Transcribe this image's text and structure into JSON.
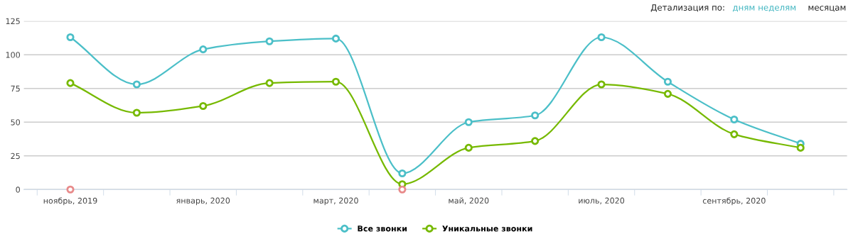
{
  "chart_data": {
    "type": "line",
    "categories": [
      "ноябрь, 2019",
      null,
      "январь, 2020",
      null,
      "март, 2020",
      null,
      "май, 2020",
      null,
      "июль, 2020",
      null,
      "сентябрь, 2020",
      null
    ],
    "series": [
      {
        "name": "Все звонки",
        "color": "#4bbfc8",
        "values": [
          113,
          78,
          104,
          110,
          112,
          12,
          50,
          55,
          113,
          80,
          52,
          34
        ]
      },
      {
        "name": "Уникальные звонки",
        "color": "#76b900",
        "values": [
          79,
          57,
          62,
          79,
          80,
          4,
          31,
          36,
          78,
          71,
          41,
          31
        ]
      },
      {
        "type": "scatter",
        "color": "#e88a8a",
        "values": [
          0,
          null,
          null,
          null,
          null,
          0,
          null,
          null,
          null,
          null,
          null,
          null
        ]
      }
    ],
    "ylim": [
      0,
      125
    ],
    "yticks": [
      0,
      25,
      50,
      75,
      100,
      125
    ],
    "grid": "y",
    "legend": "bottom",
    "marker": "circle",
    "line_style": "solid",
    "annotations": [
      "Детализация по:",
      "дням",
      "неделям",
      "месяцам"
    ]
  }
}
